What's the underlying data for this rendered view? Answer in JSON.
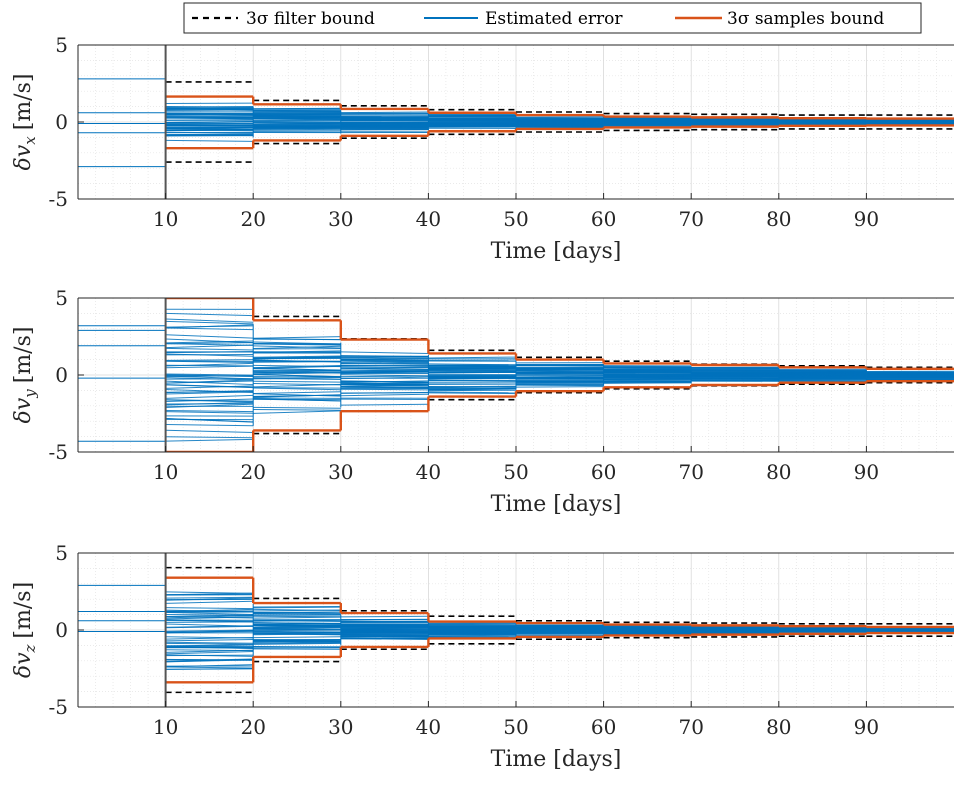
{
  "legend": {
    "items": [
      {
        "label": "3σ filter bound",
        "color": "#000000",
        "dash": true
      },
      {
        "label": "Estimated error",
        "color": "#0072BD",
        "dash": false
      },
      {
        "label": "3σ samples bound",
        "color": "#D95319",
        "dash": false
      }
    ]
  },
  "colors": {
    "filter_bound": "#000000",
    "estimated_error": "#0072BD",
    "samples_bound": "#D95319",
    "grid": "#d9d9d9"
  },
  "chart_data": [
    {
      "type": "line",
      "panel": "x",
      "ylabel_main": "δv",
      "ylabel_sub": "x",
      "ylabel_unit": "[m/s]",
      "xlabel": "Time [days]",
      "xlim": [
        0,
        100
      ],
      "ylim": [
        -5,
        5
      ],
      "xticks": [
        10,
        20,
        30,
        40,
        50,
        60,
        70,
        80,
        90
      ],
      "yticks": [
        -5,
        0,
        5
      ],
      "grid": true,
      "minor_grid": true,
      "interval_starts": [
        10,
        20,
        30,
        40,
        50,
        60,
        70,
        80,
        90
      ],
      "interval_ends": [
        20,
        30,
        40,
        50,
        60,
        70,
        80,
        90,
        100
      ],
      "filter_bound_3sigma": [
        2.6,
        1.4,
        1.05,
        0.8,
        0.65,
        0.55,
        0.5,
        0.45,
        0.45
      ],
      "samples_bound_3sigma_upper": [
        1.65,
        1.15,
        0.85,
        0.6,
        0.45,
        0.35,
        0.3,
        0.25,
        0.22
      ],
      "samples_bound_3sigma_lower": [
        -1.7,
        -1.2,
        -0.9,
        -0.6,
        -0.45,
        -0.35,
        -0.3,
        -0.25,
        -0.22
      ],
      "pre_interval_errors": [
        2.8,
        0.6,
        -0.7,
        -2.9,
        -0.1
      ],
      "error_spread": [
        1.5,
        1.0,
        0.75,
        0.55,
        0.42,
        0.33,
        0.28,
        0.24,
        0.2
      ]
    },
    {
      "type": "line",
      "panel": "y",
      "ylabel_main": "δv",
      "ylabel_sub": "y",
      "ylabel_unit": "[m/s]",
      "xlabel": "Time [days]",
      "xlim": [
        0,
        100
      ],
      "ylim": [
        -5,
        5
      ],
      "xticks": [
        10,
        20,
        30,
        40,
        50,
        60,
        70,
        80,
        90
      ],
      "yticks": [
        -5,
        0,
        5
      ],
      "grid": true,
      "minor_grid": true,
      "interval_starts": [
        10,
        20,
        30,
        40,
        50,
        60,
        70,
        80,
        90
      ],
      "interval_ends": [
        20,
        30,
        40,
        50,
        60,
        70,
        80,
        90,
        100
      ],
      "filter_bound_3sigma": [
        5.0,
        3.8,
        2.35,
        1.6,
        1.15,
        0.9,
        0.7,
        0.6,
        0.5
      ],
      "samples_bound_3sigma_upper": [
        5.0,
        3.55,
        2.3,
        1.4,
        1.0,
        0.75,
        0.65,
        0.5,
        0.4
      ],
      "samples_bound_3sigma_lower": [
        -5.0,
        -3.6,
        -2.35,
        -1.4,
        -1.05,
        -0.8,
        -0.65,
        -0.5,
        -0.4
      ],
      "pre_interval_errors": [
        3.2,
        2.9,
        1.9,
        -0.2,
        -4.3
      ],
      "error_spread": [
        4.8,
        3.3,
        2.1,
        1.3,
        0.95,
        0.7,
        0.55,
        0.45,
        0.35
      ]
    },
    {
      "type": "line",
      "panel": "z",
      "ylabel_main": "δv",
      "ylabel_sub": "z",
      "ylabel_unit": "[m/s]",
      "xlabel": "Time [days]",
      "xlim": [
        0,
        100
      ],
      "ylim": [
        -5,
        5
      ],
      "xticks": [
        10,
        20,
        30,
        40,
        50,
        60,
        70,
        80,
        90
      ],
      "yticks": [
        -5,
        0,
        5
      ],
      "grid": true,
      "minor_grid": true,
      "interval_starts": [
        10,
        20,
        30,
        40,
        50,
        60,
        70,
        80,
        90
      ],
      "interval_ends": [
        20,
        30,
        40,
        50,
        60,
        70,
        80,
        90,
        100
      ],
      "filter_bound_3sigma": [
        4.05,
        2.05,
        1.25,
        0.9,
        0.6,
        0.5,
        0.45,
        0.4,
        0.4
      ],
      "samples_bound_3sigma_upper": [
        3.4,
        1.75,
        1.1,
        0.55,
        0.45,
        0.35,
        0.3,
        0.25,
        0.2
      ],
      "samples_bound_3sigma_lower": [
        -3.4,
        -1.75,
        -1.1,
        -0.55,
        -0.45,
        -0.35,
        -0.3,
        -0.25,
        -0.2
      ],
      "pre_interval_errors": [
        2.9,
        1.2,
        0.6,
        -0.1
      ],
      "error_spread": [
        3.2,
        1.7,
        1.0,
        0.55,
        0.42,
        0.33,
        0.28,
        0.24,
        0.2
      ]
    }
  ]
}
